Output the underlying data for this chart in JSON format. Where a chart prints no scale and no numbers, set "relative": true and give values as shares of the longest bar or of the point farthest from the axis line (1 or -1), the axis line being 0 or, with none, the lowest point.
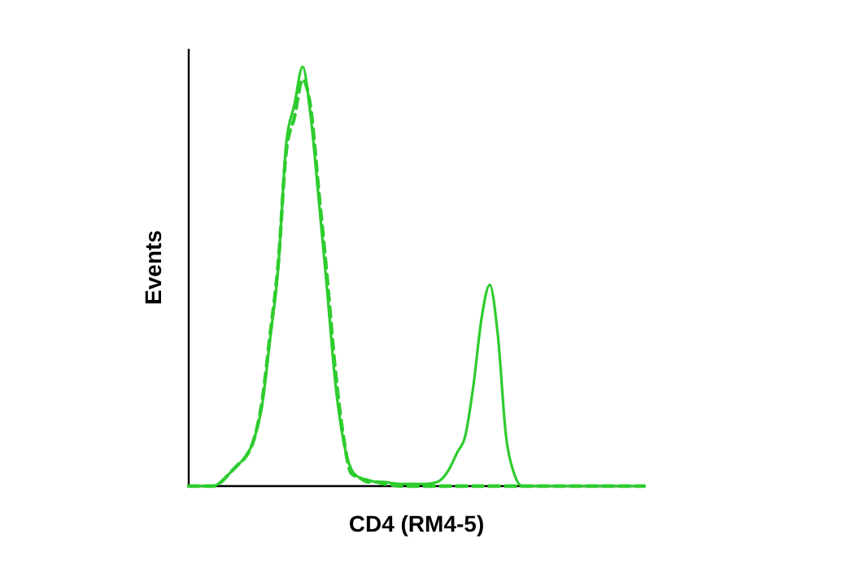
{
  "chart_data": {
    "type": "line",
    "relative": true,
    "xlabel": "CD4 (RM4-5)",
    "ylabel": "Events",
    "categories": [
      null,
      null,
      null,
      null,
      null,
      null,
      null,
      null,
      null,
      null,
      null,
      null,
      null,
      null,
      null,
      null,
      null,
      null,
      null,
      null,
      null,
      null,
      null,
      null,
      null,
      null,
      null,
      null,
      null,
      null,
      null,
      null,
      null,
      null,
      null,
      null,
      null,
      null,
      null,
      null,
      null,
      null,
      null,
      null,
      null,
      null,
      null,
      null,
      null,
      null,
      null,
      null,
      null,
      null,
      null,
      null,
      null
    ],
    "series": [
      {
        "color": "#2ecc2e",
        "line_style": "solid",
        "values": [
          0,
          0,
          0,
          0,
          0.01,
          0.03,
          0.05,
          0.07,
          0.11,
          0.19,
          0.35,
          0.52,
          0.82,
          0.91,
          1,
          0.88,
          0.68,
          0.47,
          0.25,
          0.11,
          0.04,
          0.02,
          0.015,
          0.01,
          0.01,
          0.007,
          0.005,
          0.005,
          0.005,
          0.005,
          0.007,
          0.015,
          0.04,
          0.08,
          0.12,
          0.24,
          0.4,
          0.48,
          0.36,
          0.12,
          0.03,
          0,
          0,
          0,
          0,
          0,
          0,
          0,
          0,
          0,
          0,
          0,
          0,
          0,
          0,
          0,
          0
        ]
      },
      {
        "color": "#2ecc2e",
        "line_style": "dashed",
        "values": [
          0,
          0,
          0,
          0,
          0.01,
          0.03,
          0.05,
          0.07,
          0.11,
          0.2,
          0.36,
          0.53,
          0.8,
          0.88,
          0.97,
          0.9,
          0.7,
          0.5,
          0.28,
          0.12,
          0.03,
          0.02,
          0.01,
          0.01,
          0.005,
          0.003,
          0,
          0,
          0,
          0,
          0,
          0,
          0,
          0,
          0,
          0,
          0,
          0,
          0,
          0,
          0,
          0,
          0,
          0,
          0,
          0,
          0,
          0,
          0,
          0,
          0,
          0,
          0,
          0,
          0,
          0,
          0
        ]
      }
    ]
  }
}
